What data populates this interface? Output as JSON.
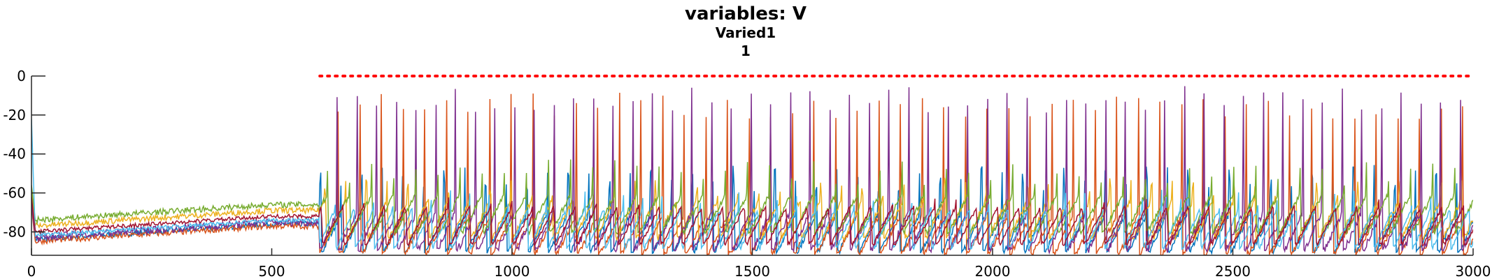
{
  "chart_data": {
    "type": "line",
    "title": "variables: V",
    "subtitle": "Varied1",
    "subtitle2": "1",
    "xlabel": "",
    "ylabel": "",
    "xlim": [
      0,
      3000
    ],
    "ylim": [
      -92,
      0
    ],
    "x_ticks": [
      0,
      500,
      1000,
      1500,
      2000,
      2500,
      3000
    ],
    "y_ticks": [
      0,
      -20,
      -40,
      -60,
      -80
    ],
    "grid": false,
    "legend": "none",
    "reference_line": {
      "style": "dotted",
      "color": "#ff0000",
      "y": 0,
      "x_range": [
        600,
        3000
      ]
    },
    "series": [
      {
        "color": "#0072bd",
        "rest": -84,
        "stim_start": 600,
        "period": 43,
        "spike_peak": -55,
        "spread": 3
      },
      {
        "color": "#d95319",
        "rest": -85,
        "stim_start": 600,
        "period": 45,
        "spike_peak": -18,
        "spread": 3
      },
      {
        "color": "#edb120",
        "rest": -77,
        "stim_start": 600,
        "period": 43,
        "spike_peak": -62,
        "spread": 3
      },
      {
        "color": "#7e2f8e",
        "rest": -83,
        "stim_start": 600,
        "period": 41,
        "spike_peak": -15,
        "spread": 4
      },
      {
        "color": "#77ac30",
        "rest": -74,
        "stim_start": 600,
        "period": 46,
        "spike_peak": -52,
        "spread": 3
      },
      {
        "color": "#4dbeee",
        "rest": -82,
        "stim_start": 600,
        "period": 40,
        "spike_peak": -68,
        "spread": 2
      },
      {
        "color": "#a2142f",
        "rest": -80,
        "stim_start": 600,
        "period": 44,
        "spike_peak": -72,
        "spread": 2
      }
    ]
  }
}
